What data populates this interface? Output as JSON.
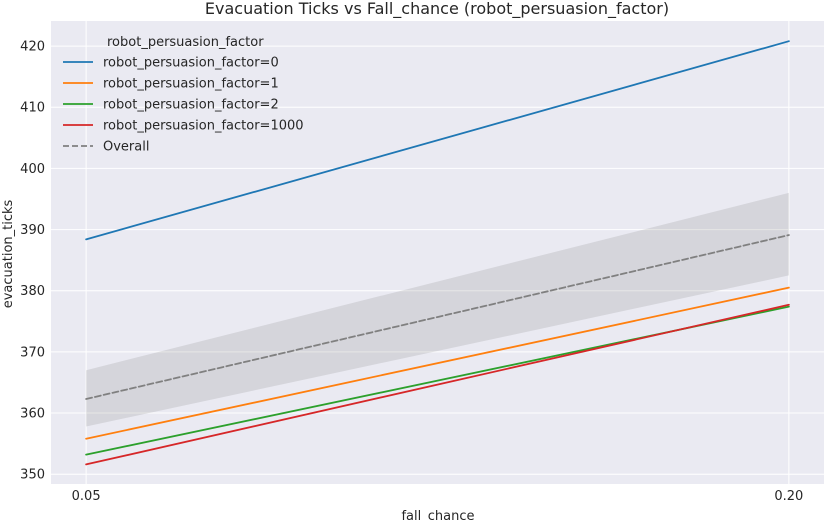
{
  "chart_data": {
    "type": "line",
    "title": "Evacuation Ticks vs Fall_chance (robot_persuasion_factor)",
    "xlabel": "fall_chance",
    "ylabel": "evacuation_ticks",
    "x": [
      0.05,
      0.2
    ],
    "x_tick_labels": [
      "0.05",
      "0.20"
    ],
    "xlim": [
      0.0425,
      0.2075
    ],
    "ylim": [
      348.4,
      424.1
    ],
    "yticks": [
      350,
      360,
      370,
      380,
      390,
      400,
      410,
      420
    ],
    "grid": true,
    "legend": {
      "title": "robot_persuasion_factor",
      "placement": "top-left"
    },
    "series": [
      {
        "name": "robot_persuasion_factor=0",
        "values": [
          388.4,
          420.8
        ],
        "color": "#1f77b4",
        "style": "solid"
      },
      {
        "name": "robot_persuasion_factor=1",
        "values": [
          355.8,
          380.5
        ],
        "color": "#ff7f0e",
        "style": "solid"
      },
      {
        "name": "robot_persuasion_factor=2",
        "values": [
          353.2,
          377.4
        ],
        "color": "#2ca02c",
        "style": "solid"
      },
      {
        "name": "robot_persuasion_factor=1000",
        "values": [
          351.6,
          377.7
        ],
        "color": "#d62728",
        "style": "solid"
      },
      {
        "name": "Overall",
        "values": [
          362.3,
          389.1
        ],
        "color": "#808080",
        "style": "dashed",
        "band_lower": [
          357.8,
          382.5
        ],
        "band_upper": [
          367.0,
          396.0
        ]
      }
    ]
  }
}
